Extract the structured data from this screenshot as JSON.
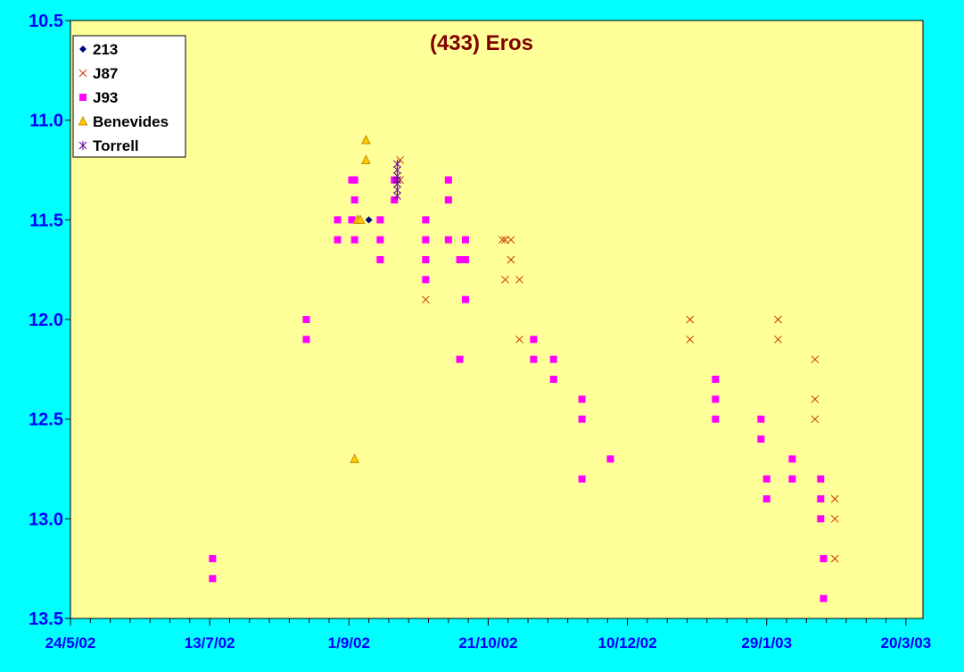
{
  "colors": {
    "background": "#00ffff",
    "plot_area": "#ffff99",
    "title": "#800000",
    "axis_labels": "#0000ff",
    "213": "#000080",
    "J87": "#cc3300",
    "J93": "#ff00ff",
    "Benevides": "#cc8800",
    "Torrell": "#660099"
  },
  "chart_data": {
    "type": "scatter",
    "title": "(433) Eros",
    "xlabel": "",
    "ylabel": "",
    "legend_position": "top-left",
    "grid": false,
    "y_inverted": true,
    "xlim": [
      "2002-05-24",
      "2003-03-20"
    ],
    "ylim": [
      10.5,
      13.5
    ],
    "x_tick_labels": [
      "24/5/02",
      "13/7/02",
      "1/9/02",
      "21/10/02",
      "10/12/02",
      "29/1/03",
      "20/3/03"
    ],
    "y_tick_labels": [
      "10.5",
      "11.0",
      "11.5",
      "12.0",
      "12.5",
      "13.0",
      "13.5"
    ],
    "series": [
      {
        "name": "213",
        "marker": "diamond",
        "points": [
          [
            "2002-09-06",
            11.5
          ]
        ]
      },
      {
        "name": "J87",
        "marker": "x",
        "points": [
          [
            "2002-09-16",
            11.3
          ],
          [
            "2002-09-17",
            11.2
          ],
          [
            "2002-09-17",
            11.3
          ],
          [
            "2002-09-26",
            11.9
          ],
          [
            "2002-10-23",
            11.6
          ],
          [
            "2002-10-24",
            11.6
          ],
          [
            "2002-10-24",
            11.8
          ],
          [
            "2002-10-26",
            11.6
          ],
          [
            "2002-10-26",
            11.7
          ],
          [
            "2002-10-29",
            11.8
          ],
          [
            "2002-10-29",
            12.1
          ],
          [
            "2002-12-28",
            12.0
          ],
          [
            "2002-12-28",
            12.1
          ],
          [
            "2003-01-28",
            12.0
          ],
          [
            "2003-01-28",
            12.1
          ],
          [
            "2003-02-10",
            12.2
          ],
          [
            "2003-02-10",
            12.4
          ],
          [
            "2003-02-10",
            12.5
          ],
          [
            "2003-02-17",
            12.9
          ],
          [
            "2003-02-17",
            13.0
          ],
          [
            "2003-02-17",
            13.2
          ]
        ]
      },
      {
        "name": "J93",
        "marker": "square",
        "points": [
          [
            "2002-07-13",
            13.2
          ],
          [
            "2002-07-13",
            13.3
          ],
          [
            "2002-08-15",
            12.0
          ],
          [
            "2002-08-15",
            12.1
          ],
          [
            "2002-08-26",
            11.5
          ],
          [
            "2002-08-26",
            11.6
          ],
          [
            "2002-08-31",
            11.3
          ],
          [
            "2002-09-01",
            11.3
          ],
          [
            "2002-09-01",
            11.4
          ],
          [
            "2002-08-31",
            11.5
          ],
          [
            "2002-09-01",
            11.6
          ],
          [
            "2002-09-10",
            11.5
          ],
          [
            "2002-09-10",
            11.6
          ],
          [
            "2002-09-10",
            11.7
          ],
          [
            "2002-09-15",
            11.3
          ],
          [
            "2002-09-15",
            11.4
          ],
          [
            "2002-09-26",
            11.5
          ],
          [
            "2002-09-26",
            11.6
          ],
          [
            "2002-09-26",
            11.7
          ],
          [
            "2002-09-26",
            11.8
          ],
          [
            "2002-10-04",
            11.3
          ],
          [
            "2002-10-04",
            11.4
          ],
          [
            "2002-10-04",
            11.6
          ],
          [
            "2002-10-08",
            11.7
          ],
          [
            "2002-10-08",
            12.2
          ],
          [
            "2002-10-10",
            11.6
          ],
          [
            "2002-10-10",
            11.7
          ],
          [
            "2002-10-10",
            11.9
          ],
          [
            "2002-11-03",
            12.1
          ],
          [
            "2002-11-03",
            12.2
          ],
          [
            "2002-11-10",
            12.2
          ],
          [
            "2002-11-10",
            12.3
          ],
          [
            "2002-11-20",
            12.4
          ],
          [
            "2002-11-20",
            12.5
          ],
          [
            "2002-11-20",
            12.8
          ],
          [
            "2002-11-30",
            12.7
          ],
          [
            "2003-01-06",
            12.3
          ],
          [
            "2003-01-06",
            12.4
          ],
          [
            "2003-01-06",
            12.5
          ],
          [
            "2003-01-22",
            12.5
          ],
          [
            "2003-01-22",
            12.6
          ],
          [
            "2003-01-24",
            12.8
          ],
          [
            "2003-01-24",
            12.9
          ],
          [
            "2003-02-02",
            12.7
          ],
          [
            "2003-02-02",
            12.8
          ],
          [
            "2003-02-12",
            12.8
          ],
          [
            "2003-02-12",
            12.9
          ],
          [
            "2003-02-12",
            13.0
          ],
          [
            "2003-02-13",
            13.2
          ],
          [
            "2003-02-13",
            13.4
          ]
        ]
      },
      {
        "name": "Benevides",
        "marker": "triangle",
        "points": [
          [
            "2002-09-05",
            11.1
          ],
          [
            "2002-09-05",
            11.2
          ],
          [
            "2002-09-02",
            11.5
          ],
          [
            "2002-09-03",
            11.5
          ],
          [
            "2002-09-01",
            12.7
          ]
        ]
      },
      {
        "name": "Torrell",
        "marker": "asterisk",
        "points": [
          [
            "2002-09-16",
            11.22
          ],
          [
            "2002-09-16",
            11.25
          ],
          [
            "2002-09-16",
            11.28
          ],
          [
            "2002-09-16",
            11.3
          ],
          [
            "2002-09-16",
            11.32
          ],
          [
            "2002-09-16",
            11.35
          ],
          [
            "2002-09-16",
            11.38
          ]
        ]
      }
    ]
  }
}
